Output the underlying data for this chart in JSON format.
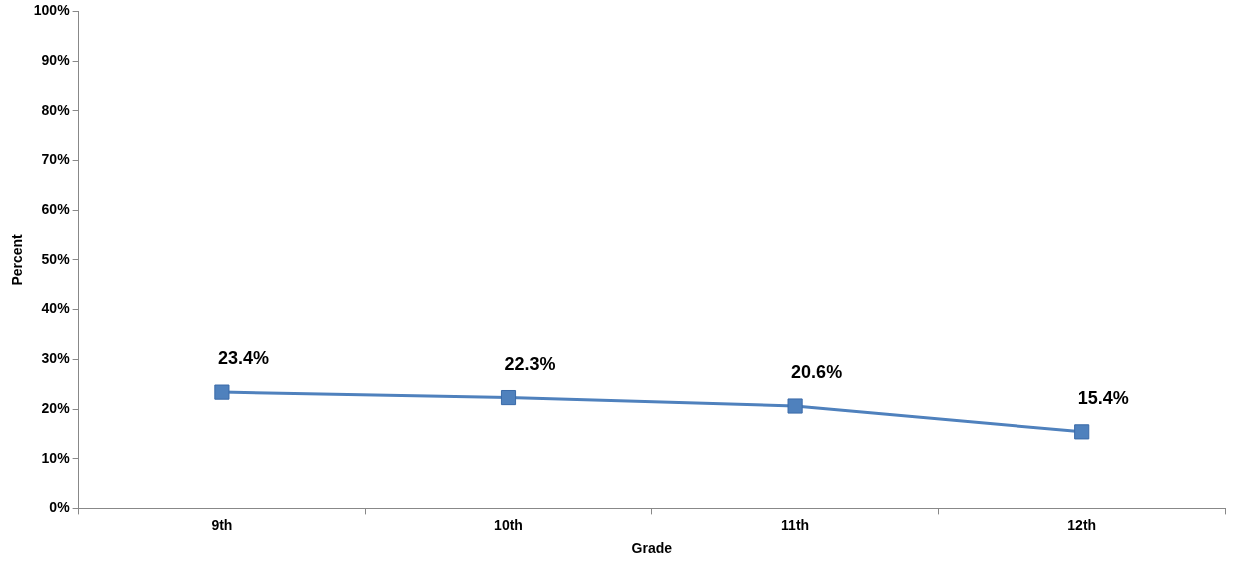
{
  "chart_data": {
    "type": "line",
    "xlabel": "Grade",
    "ylabel": "Percent",
    "categories": [
      "9th",
      "10th",
      "11th",
      "12th"
    ],
    "series": [
      {
        "color": "#4f81bd",
        "values": [
          23.4,
          22.3,
          20.6,
          15.4
        ],
        "value_labels": [
          "23.4%",
          "22.3%",
          "20.6%",
          "15.4%"
        ]
      }
    ],
    "ylim": [
      0,
      100
    ],
    "yticks": [
      {
        "value": 0,
        "label": "0%"
      },
      {
        "value": 10,
        "label": "10%"
      },
      {
        "value": 20,
        "label": "20%"
      },
      {
        "value": 30,
        "label": "30%"
      },
      {
        "value": 40,
        "label": "40%"
      },
      {
        "value": 50,
        "label": "50%"
      },
      {
        "value": 60,
        "label": "60%"
      },
      {
        "value": 70,
        "label": "70%"
      },
      {
        "value": 80,
        "label": "80%"
      },
      {
        "value": 90,
        "label": "90%"
      },
      {
        "value": 100,
        "label": "100%"
      }
    ],
    "marker": "square",
    "line_style": "solid",
    "legend": false
  }
}
